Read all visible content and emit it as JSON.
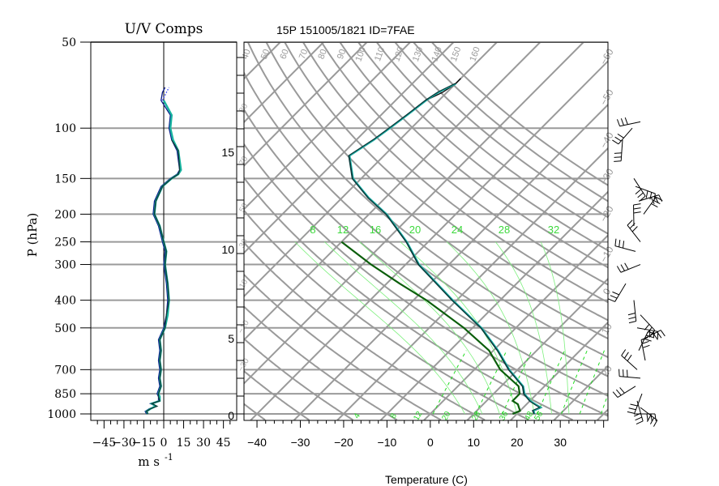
{
  "header": {
    "title": "15P 151005/1821 ID=7FAE",
    "left_panel_title": "U/V Comps"
  },
  "axes": {
    "pressure_label": "P (hPa)",
    "pressure_ticks": [
      50,
      100,
      150,
      200,
      250,
      300,
      400,
      500,
      700,
      850,
      1000
    ],
    "pressure_range": [
      50,
      1000
    ],
    "height_ticks": [
      0,
      5,
      10,
      15
    ],
    "height_unit_printed": "",
    "wind_xlabel": "m s",
    "wind_xlabel_exp": "-1",
    "wind_ticks": [
      -45,
      -30,
      -15,
      0,
      15,
      30,
      45
    ],
    "wind_range": [
      -55,
      55
    ],
    "temp_xlabel": "Temperature (C)",
    "temp_ticks": [
      -40,
      -30,
      -20,
      -10,
      0,
      10,
      20,
      30
    ],
    "temp_range": [
      -43,
      41
    ]
  },
  "chart_data": [
    {
      "type": "line",
      "panel": "wind-components",
      "title": "U/V Comps",
      "xlabel": "m s -1",
      "ylabel": "P (hPa)",
      "xlim": [
        -55,
        55
      ],
      "ylim": [
        1000,
        50
      ],
      "y_scale": "log",
      "grid": "horizontal at pressure ticks",
      "series": [
        {
          "color": "#0a1a8a",
          "style": "solid",
          "values": [
            [
              1000,
              -13
            ],
            [
              980,
              -14
            ],
            [
              960,
              -11
            ],
            [
              940,
              -6
            ],
            [
              920,
              -10
            ],
            [
              900,
              -4
            ],
            [
              870,
              -4
            ],
            [
              850,
              -5
            ],
            [
              800,
              -3
            ],
            [
              750,
              -4
            ],
            [
              700,
              -3
            ],
            [
              650,
              -4
            ],
            [
              600,
              -3
            ],
            [
              550,
              -4
            ],
            [
              500,
              0
            ],
            [
              450,
              2
            ],
            [
              400,
              3
            ],
            [
              350,
              2
            ],
            [
              300,
              0
            ],
            [
              270,
              1
            ],
            [
              250,
              -1
            ],
            [
              220,
              -4
            ],
            [
              200,
              -8
            ],
            [
              180,
              -7
            ],
            [
              160,
              -2
            ],
            [
              150,
              5
            ],
            [
              145,
              10
            ],
            [
              140,
              12
            ],
            [
              120,
              10
            ],
            [
              110,
              6
            ],
            [
              100,
              4
            ],
            [
              90,
              5
            ],
            [
              80,
              -2
            ],
            [
              75,
              -1
            ],
            [
              72,
              1
            ]
          ]
        },
        {
          "color": "#18b4a0",
          "style": "solid",
          "values": [
            [
              1000,
              -12
            ],
            [
              980,
              -13
            ],
            [
              960,
              -10
            ],
            [
              940,
              -6
            ],
            [
              920,
              -9
            ],
            [
              900,
              -3
            ],
            [
              870,
              -3
            ],
            [
              850,
              -4
            ],
            [
              800,
              -2
            ],
            [
              750,
              -3
            ],
            [
              700,
              -2
            ],
            [
              650,
              -3
            ],
            [
              600,
              -2
            ],
            [
              550,
              -3
            ],
            [
              500,
              1
            ],
            [
              450,
              3
            ],
            [
              400,
              4
            ],
            [
              350,
              3
            ],
            [
              300,
              1
            ],
            [
              270,
              2
            ],
            [
              250,
              0
            ],
            [
              220,
              -3
            ],
            [
              200,
              -7
            ],
            [
              180,
              -6
            ],
            [
              160,
              -1
            ],
            [
              150,
              6
            ],
            [
              145,
              11
            ],
            [
              140,
              13
            ],
            [
              120,
              11
            ],
            [
              110,
              7
            ],
            [
              100,
              5
            ],
            [
              90,
              6
            ],
            [
              80,
              0
            ]
          ]
        },
        {
          "color": "#0e3c38",
          "style": "solid",
          "values": [
            [
              1000,
              -12
            ],
            [
              980,
              -13
            ],
            [
              960,
              -10
            ],
            [
              940,
              -5
            ],
            [
              920,
              -9
            ],
            [
              900,
              -3
            ],
            [
              870,
              -4
            ],
            [
              850,
              -4
            ],
            [
              800,
              -2
            ],
            [
              750,
              -3
            ],
            [
              700,
              -2
            ],
            [
              650,
              -3
            ],
            [
              600,
              -2
            ],
            [
              550,
              -3
            ],
            [
              500,
              1
            ],
            [
              450,
              2
            ],
            [
              400,
              4
            ],
            [
              350,
              3
            ],
            [
              300,
              1
            ],
            [
              270,
              2
            ],
            [
              250,
              0
            ],
            [
              220,
              -3
            ],
            [
              200,
              -7
            ],
            [
              180,
              -6
            ],
            [
              160,
              -1
            ],
            [
              150,
              6
            ],
            [
              145,
              11
            ],
            [
              140,
              12
            ],
            [
              120,
              11
            ],
            [
              110,
              6
            ]
          ]
        },
        {
          "color": "#2030ff",
          "style": "dotted",
          "values": [
            [
              80,
              -1
            ],
            [
              75,
              2
            ],
            [
              72,
              4
            ]
          ]
        }
      ]
    },
    {
      "type": "line",
      "panel": "skew-t",
      "title": "15P 151005/1821 ID=7FAE",
      "xlabel": "Temperature (C)",
      "ylabel": "P (hPa)",
      "xlim": [
        -43,
        41
      ],
      "ylim": [
        1000,
        50
      ],
      "y_scale": "log",
      "grid": "skewed isotherms, dry adiabats, mixing ratio lines",
      "moist_adiabat_labels": [
        "8",
        "12",
        "16",
        "20",
        "24",
        "28",
        "32"
      ],
      "mixing_ratio_labels": [
        "4",
        "8",
        "12",
        "20",
        "28",
        "36",
        "48",
        "56"
      ],
      "series": [
        {
          "name": "",
          "color": "#0a3c3c",
          "values": [
            [
              1000,
              24
            ],
            [
              975,
              23
            ],
            [
              950,
              24
            ],
            [
              925,
              22
            ],
            [
              900,
              20
            ],
            [
              850,
              17
            ],
            [
              800,
              15
            ],
            [
              700,
              8
            ],
            [
              600,
              1
            ],
            [
              500,
              -8
            ],
            [
              400,
              -21
            ],
            [
              300,
              -37
            ],
            [
              250,
              -45
            ],
            [
              200,
              -56
            ],
            [
              175,
              -64
            ],
            [
              150,
              -72
            ],
            [
              125,
              -78
            ],
            [
              110,
              -76
            ],
            [
              100,
              -75
            ],
            [
              90,
              -74
            ],
            [
              80,
              -73
            ],
            [
              75,
              -72
            ],
            [
              70,
              -70
            ]
          ]
        },
        {
          "name": "",
          "color": "#000000",
          "values": [
            [
              80,
              -73
            ],
            [
              75,
              -71
            ],
            [
              70,
              -70
            ],
            [
              67,
              -70
            ]
          ]
        },
        {
          "name": "",
          "color": "#0b5e0b",
          "values": [
            [
              1000,
              19
            ],
            [
              975,
              20
            ],
            [
              950,
              19
            ],
            [
              925,
              18
            ],
            [
              900,
              16
            ],
            [
              850,
              16
            ],
            [
              800,
              14
            ],
            [
              700,
              6
            ],
            [
              600,
              -1
            ],
            [
              500,
              -12
            ],
            [
              400,
              -27
            ],
            [
              350,
              -37
            ],
            [
              300,
              -48
            ],
            [
              250,
              -60
            ]
          ]
        }
      ]
    }
  ],
  "wind_barbs": {
    "note": "wind barbs on right side",
    "levels": [
      1000,
      950,
      900,
      850,
      800,
      750,
      700,
      650,
      600,
      550,
      500,
      450,
      400,
      350,
      300,
      270,
      250,
      220,
      200,
      180,
      160,
      150,
      110,
      100,
      95
    ]
  }
}
